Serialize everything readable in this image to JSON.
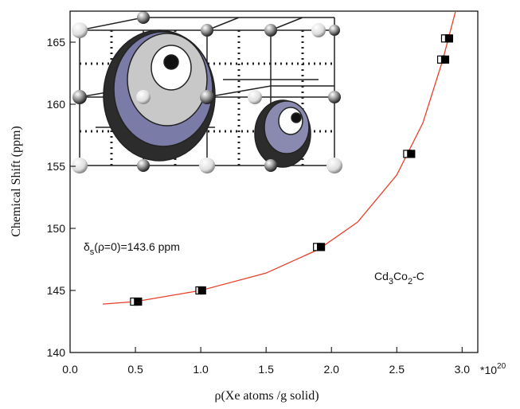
{
  "chart_data": {
    "type": "scatter",
    "y_label": "Chemical Shift (ppm)",
    "x_label": "ρ(Xe atoms /g solid)",
    "x_multiplier": {
      "base": "*10",
      "exponent": "20"
    },
    "xlim": [
      0,
      3.12
    ],
    "ylim": [
      140,
      167.5
    ],
    "xticks": [
      {
        "value": 0,
        "label": "0.0"
      },
      0.5,
      {
        "value": 1,
        "label": "1.0"
      },
      1.5,
      {
        "value": 2,
        "label": "2.0"
      },
      2.5,
      {
        "value": 3,
        "label": "3.0"
      }
    ],
    "yticks": [
      140,
      145,
      150,
      155,
      160,
      165
    ],
    "series": [
      {
        "marker": "line",
        "color": "#e8402a",
        "x": [
          0.25,
          0.5,
          1.0,
          1.5,
          1.9,
          2.2,
          2.5,
          2.7,
          2.85,
          2.95
        ],
        "values": [
          143.9,
          144.1,
          145.0,
          146.4,
          148.3,
          150.5,
          154.3,
          158.5,
          163.5,
          167.5
        ]
      },
      {
        "marker": "open",
        "color": "#000000",
        "x": [
          0.49,
          0.99,
          1.89,
          2.58,
          2.84,
          2.87
        ],
        "values": [
          144.1,
          145.0,
          148.5,
          156.0,
          163.6,
          165.3
        ]
      },
      {
        "marker": "filled",
        "color": "#000000",
        "x": [
          0.52,
          1.01,
          1.92,
          2.61,
          2.87,
          2.9
        ],
        "values": [
          144.1,
          145.0,
          148.5,
          156.0,
          163.6,
          165.3
        ]
      }
    ],
    "annotations": [
      {
        "parts": [
          "δ",
          "s",
          "(ρ=0)=143.6 ppm"
        ]
      },
      {
        "parts": [
          "Cd",
          "3",
          "Co",
          "2",
          "-C"
        ]
      }
    ]
  }
}
